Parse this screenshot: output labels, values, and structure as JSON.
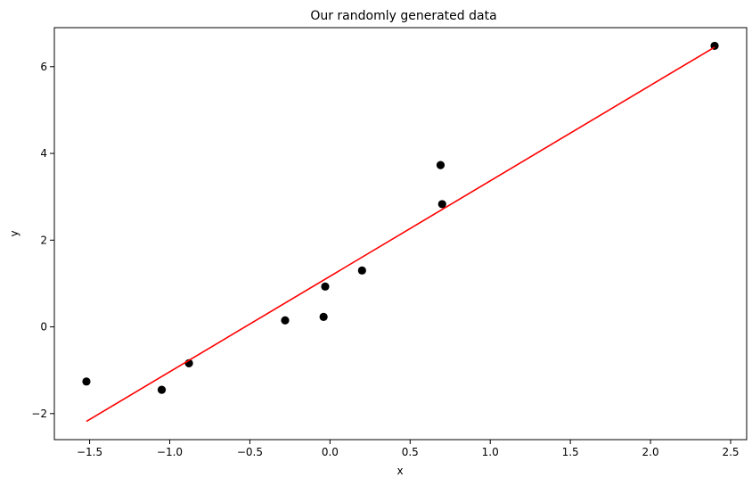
{
  "chart_data": {
    "type": "scatter",
    "title": "Our randomly generated data",
    "xlabel": "x",
    "ylabel": "y",
    "xlim": [
      -1.72,
      2.6
    ],
    "ylim": [
      -2.6,
      6.9
    ],
    "grid": false,
    "x_ticks": [
      -1.5,
      -1.0,
      -0.5,
      0.0,
      0.5,
      1.0,
      1.5,
      2.0,
      2.5
    ],
    "x_tick_labels": [
      "−1.5",
      "−1.0",
      "−0.5",
      "0.0",
      "0.5",
      "1.0",
      "1.5",
      "2.0",
      "2.5"
    ],
    "y_ticks": [
      -2,
      0,
      2,
      4,
      6
    ],
    "y_tick_labels": [
      "−2",
      "0",
      "2",
      "4",
      "6"
    ],
    "series": [
      {
        "type": "scatter",
        "color": "#000000",
        "points": [
          {
            "x": -1.52,
            "y": -1.26
          },
          {
            "x": -1.05,
            "y": -1.45
          },
          {
            "x": -0.88,
            "y": -0.84
          },
          {
            "x": -0.28,
            "y": 0.15
          },
          {
            "x": -0.04,
            "y": 0.23
          },
          {
            "x": -0.03,
            "y": 0.93
          },
          {
            "x": 0.2,
            "y": 1.3
          },
          {
            "x": 0.69,
            "y": 3.73
          },
          {
            "x": 0.7,
            "y": 2.83
          },
          {
            "x": 2.4,
            "y": 6.48
          }
        ]
      },
      {
        "type": "line",
        "color": "#ff0000",
        "points": [
          {
            "x": -1.52,
            "y": -2.18
          },
          {
            "x": 2.4,
            "y": 6.45
          }
        ]
      }
    ]
  }
}
